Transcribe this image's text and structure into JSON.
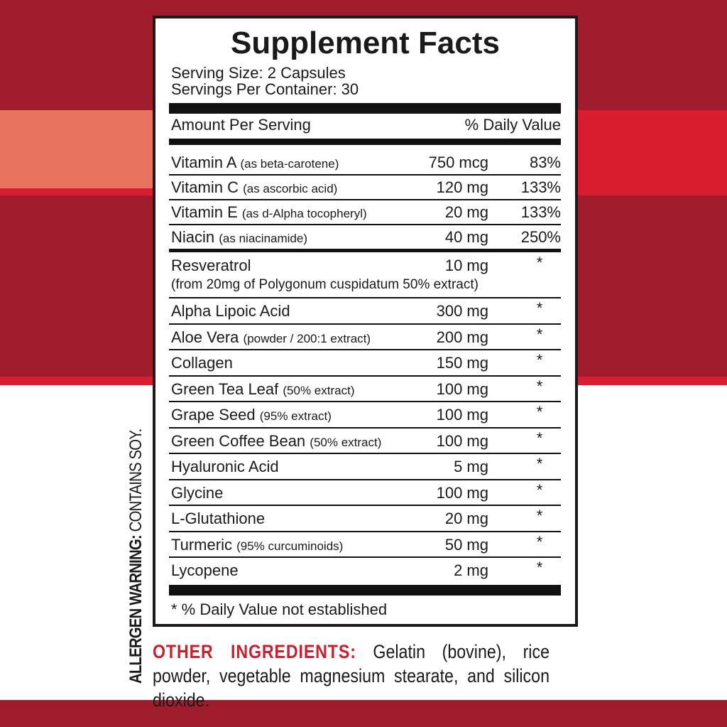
{
  "label": {
    "title": "Supplement Facts",
    "serving_size": "Serving Size: 2 Capsules",
    "servings_per_container": "Servings Per Container: 30",
    "header": {
      "amount": "Amount Per Serving",
      "dv": "% Daily Value"
    },
    "rows": [
      {
        "name": "Vitamin A",
        "note": "(as beta-carotene)",
        "amount": "750 mcg",
        "dv": "83%"
      },
      {
        "name": "Vitamin C",
        "note": "(as ascorbic acid)",
        "amount": "120 mg",
        "dv": "133%"
      },
      {
        "name": "Vitamin E",
        "note": "(as d-Alpha tocopheryl)",
        "amount": "20 mg",
        "dv": "133%"
      },
      {
        "name": "Niacin",
        "note": "(as niacinamide)",
        "amount": "40 mg",
        "dv": "250%"
      },
      {
        "name": "Resveratrol",
        "subline": "(from 20mg of Polygonum cuspidatum 50% extract)",
        "amount": "10 mg",
        "dv": "*"
      },
      {
        "name": "Alpha Lipoic Acid",
        "amount": "300 mg",
        "dv": "*"
      },
      {
        "name": "Aloe Vera",
        "note": "(powder / 200:1 extract)",
        "amount": "200 mg",
        "dv": "*"
      },
      {
        "name": "Collagen",
        "amount": "150 mg",
        "dv": "*"
      },
      {
        "name": "Green Tea Leaf",
        "note": "(50% extract)",
        "amount": "100 mg",
        "dv": "*"
      },
      {
        "name": "Grape Seed",
        "note": "(95% extract)",
        "amount": "100 mg",
        "dv": "*"
      },
      {
        "name": "Green Coffee Bean",
        "note": "(50% extract)",
        "amount": "100 mg",
        "dv": "*"
      },
      {
        "name": "Hyaluronic Acid",
        "amount": "5 mg",
        "dv": "*"
      },
      {
        "name": "Glycine",
        "amount": "100 mg",
        "dv": "*"
      },
      {
        "name": "L-Glutathione",
        "amount": "20 mg",
        "dv": "*"
      },
      {
        "name": "Turmeric",
        "note": "(95% curcuminoids)",
        "amount": "50 mg",
        "dv": "*"
      },
      {
        "name": "Lycopene",
        "amount": "2 mg",
        "dv": "*"
      }
    ],
    "footnote": "* % Daily Value not established"
  },
  "allergen": {
    "label": "ALLERGEN WARNING:",
    "text": "CONTAINS SOY."
  },
  "other_ingredients": {
    "label": "OTHER INGREDIENTS:",
    "text": "Gelatin (bovine), rice powder, vegetable magnesium stearate, and silicon dioxide."
  }
}
